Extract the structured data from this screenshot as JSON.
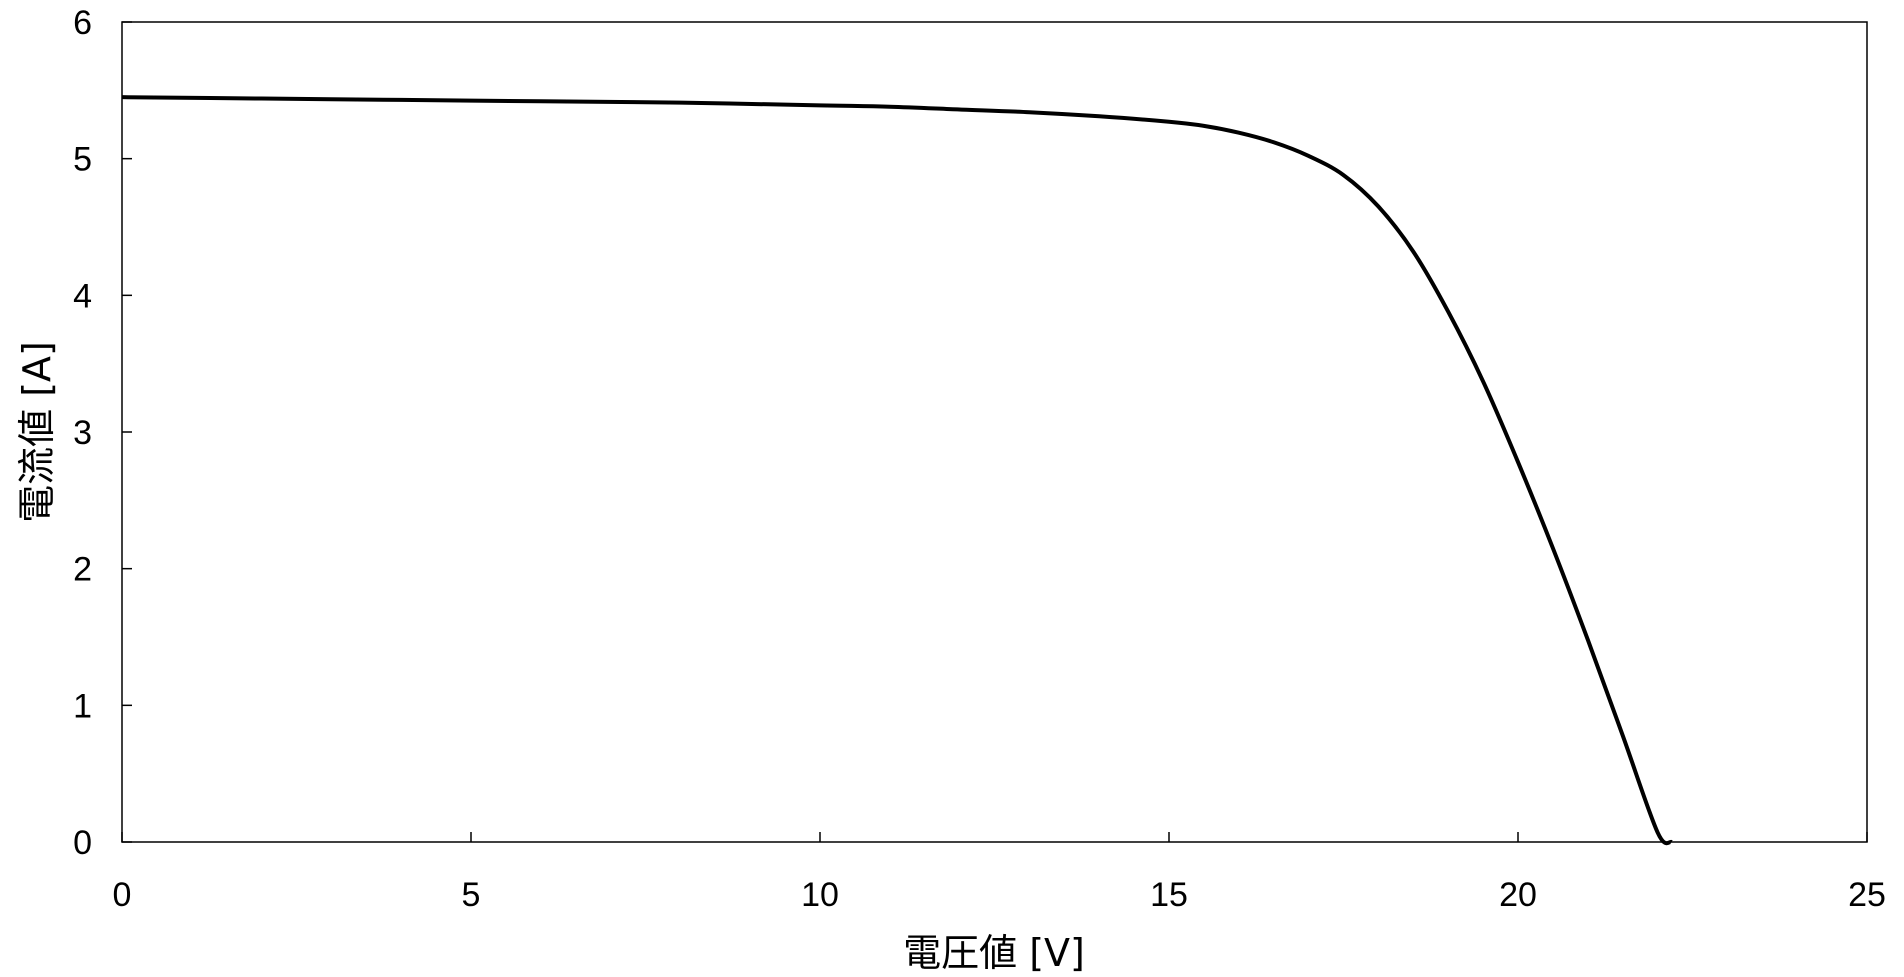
{
  "chart_data": {
    "type": "line",
    "title": "",
    "xlabel": "電圧値 [V]",
    "ylabel": "電流値 [A]",
    "xlim": [
      0,
      25
    ],
    "ylim": [
      0,
      6
    ],
    "xticks": [
      0,
      5,
      10,
      15,
      20,
      25
    ],
    "yticks": [
      0,
      1,
      2,
      3,
      4,
      5,
      6
    ],
    "grid": false,
    "legend": "none",
    "line_color": "#000000",
    "series": [
      {
        "x": [
          0,
          2,
          4,
          6,
          8,
          10,
          11,
          12,
          13,
          14,
          15,
          15.5,
          16,
          16.5,
          17,
          17.5,
          18,
          18.5,
          19,
          19.5,
          20,
          20.5,
          21,
          21.5,
          22,
          22.2
        ],
        "y": [
          5.45,
          5.44,
          5.43,
          5.42,
          5.41,
          5.39,
          5.38,
          5.36,
          5.34,
          5.31,
          5.27,
          5.24,
          5.19,
          5.12,
          5.02,
          4.88,
          4.65,
          4.32,
          3.88,
          3.37,
          2.78,
          2.15,
          1.48,
          0.78,
          0.07,
          0
        ]
      }
    ]
  }
}
